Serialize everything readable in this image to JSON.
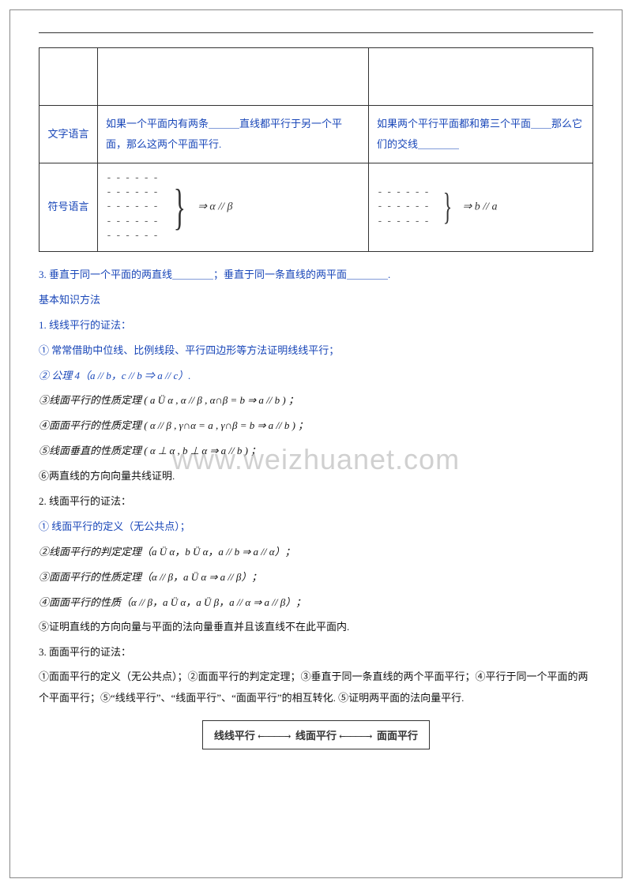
{
  "table": {
    "row1_label": "文字语言",
    "row1_col1": "如果一个平面内有两条＿＿＿直线都平行于另一个平面，那么这两个平面平行.",
    "row1_col2": "如果两个平行平面都和第三个平面＿＿那么它们的交线＿＿＿＿",
    "row2_label": "符号语言",
    "row2_col1_result": "⇒ α // β",
    "row2_col2_result": "⇒ b // a"
  },
  "section3": "3. 垂直于同一个平面的两直线＿＿＿＿；垂直于同一条直线的两平面＿＿＿＿.",
  "basic_title": "基本知识方法",
  "s1": {
    "title": "1. 线线平行的证法：",
    "i1": "① 常常借助中位线、比例线段、平行四边形等方法证明线线平行；",
    "i2": "② 公理 4（a // b，c // b ⇒ a // c）.",
    "i3": "③线面平行的性质定理 ( a Ü α , α // β , α∩β = b ⇒ a // b ) ；",
    "i4": "④面面平行的性质定理 ( α // β , γ∩α = a , γ∩β = b ⇒ a // b ) ；",
    "i5": "⑤线面垂直的性质定理 ( α ⊥ α , b ⊥ α ⇒ a // b ) ；",
    "i6": "⑥两直线的方向向量共线证明."
  },
  "s2": {
    "title": "2. 线面平行的证法：",
    "i1": "① 线面平行的定义（无公共点）；",
    "i2": "②线面平行的判定定理（a Ü α，b Ü α，a // b ⇒ a // α）；",
    "i3": "③面面平行的性质定理（α // β，a Ü α ⇒ a // β）；",
    "i4": "④面面平行的性质（α // β，a Ü α，a Ü β，a // α ⇒ a // β）；",
    "i5": "⑤证明直线的方向向量与平面的法向量垂直并且该直线不在此平面内."
  },
  "s3": {
    "title": "3. 面面平行的证法：",
    "body": "①面面平行的定义（无公共点）；②面面平行的判定定理；③垂直于同一条直线的两个平面平行；④平行于同一个平面的两个平面平行；⑤“线线平行”、“线面平行”、“面面平行”的相互转化. ⑤证明两平面的法向量平行."
  },
  "diagram": {
    "n1": "线线平行",
    "n2": "线面平行",
    "n3": "面面平行"
  },
  "watermark": "www.weizhuanet.com",
  "colors": {
    "link_blue": "#1846b8",
    "text": "#333333",
    "watermark": "rgba(170,170,170,0.55)",
    "border": "#333333"
  }
}
